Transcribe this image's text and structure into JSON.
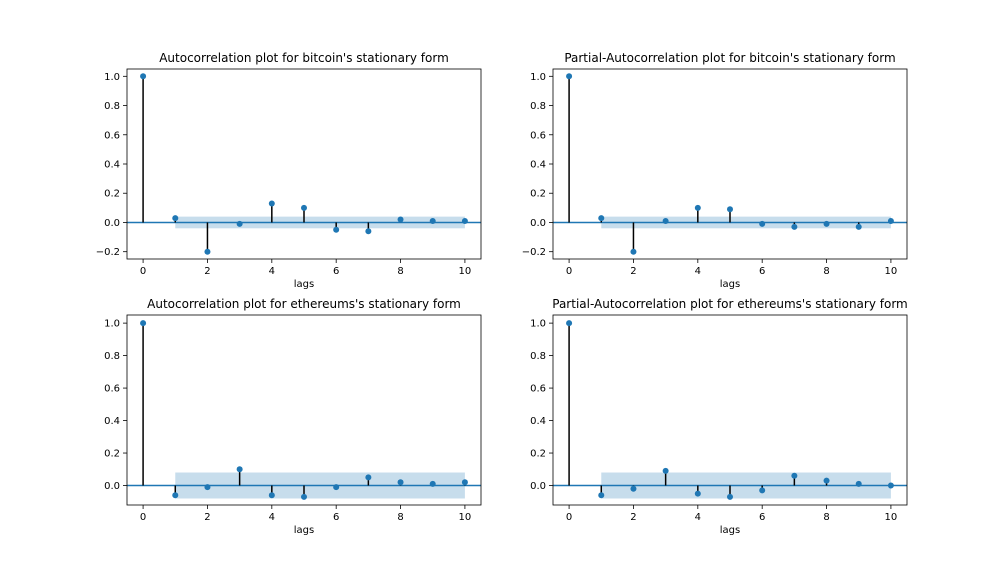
{
  "chart_data": [
    {
      "type": "stem",
      "title": "Autocorrelation plot for bitcoin's stationary form",
      "xlabel": "lags",
      "ylabel": "",
      "x": [
        0,
        1,
        2,
        3,
        4,
        5,
        6,
        7,
        8,
        9,
        10
      ],
      "values": [
        1.0,
        0.03,
        -0.2,
        -0.01,
        0.13,
        0.1,
        -0.05,
        -0.06,
        0.02,
        0.01,
        0.01
      ],
      "confidence_band": {
        "x_start": 1,
        "x_end": 10,
        "lower": -0.04,
        "upper": 0.04
      },
      "xlim": [
        -0.5,
        10.5
      ],
      "ylim": [
        -0.25,
        1.05
      ],
      "xticks": [
        0,
        2,
        4,
        6,
        8,
        10
      ],
      "yticks": [
        -0.2,
        0.0,
        0.2,
        0.4,
        0.6,
        0.8,
        1.0
      ],
      "marker_color": "#1f77b4",
      "band_color": "#1f77b4",
      "grid": false
    },
    {
      "type": "stem",
      "title": "Partial-Autocorrelation plot for bitcoin's stationary form",
      "xlabel": "lags",
      "ylabel": "",
      "x": [
        0,
        1,
        2,
        3,
        4,
        5,
        6,
        7,
        8,
        9,
        10
      ],
      "values": [
        1.0,
        0.03,
        -0.2,
        0.01,
        0.1,
        0.09,
        -0.01,
        -0.03,
        -0.01,
        -0.03,
        0.01
      ],
      "confidence_band": {
        "x_start": 1,
        "x_end": 10,
        "lower": -0.04,
        "upper": 0.04
      },
      "xlim": [
        -0.5,
        10.5
      ],
      "ylim": [
        -0.25,
        1.05
      ],
      "xticks": [
        0,
        2,
        4,
        6,
        8,
        10
      ],
      "yticks": [
        -0.2,
        0.0,
        0.2,
        0.4,
        0.6,
        0.8,
        1.0
      ],
      "marker_color": "#1f77b4",
      "band_color": "#1f77b4",
      "grid": false
    },
    {
      "type": "stem",
      "title": "Autocorrelation plot for ethereums's stationary form",
      "xlabel": "lags",
      "ylabel": "",
      "x": [
        0,
        1,
        2,
        3,
        4,
        5,
        6,
        7,
        8,
        9,
        10
      ],
      "values": [
        1.0,
        -0.06,
        -0.01,
        0.1,
        -0.06,
        -0.07,
        -0.01,
        0.05,
        0.02,
        0.01,
        0.02
      ],
      "confidence_band": {
        "x_start": 1,
        "x_end": 10,
        "lower": -0.08,
        "upper": 0.08
      },
      "xlim": [
        -0.5,
        10.5
      ],
      "ylim": [
        -0.12,
        1.05
      ],
      "xticks": [
        0,
        2,
        4,
        6,
        8,
        10
      ],
      "yticks": [
        0.0,
        0.2,
        0.4,
        0.6,
        0.8,
        1.0
      ],
      "marker_color": "#1f77b4",
      "band_color": "#1f77b4",
      "grid": false
    },
    {
      "type": "stem",
      "title": "Partial-Autocorrelation plot for ethereums's stationary form",
      "xlabel": "lags",
      "ylabel": "",
      "x": [
        0,
        1,
        2,
        3,
        4,
        5,
        6,
        7,
        8,
        9,
        10
      ],
      "values": [
        1.0,
        -0.06,
        -0.02,
        0.09,
        -0.05,
        -0.07,
        -0.03,
        0.06,
        0.03,
        0.01,
        0.0
      ],
      "confidence_band": {
        "x_start": 1,
        "x_end": 10,
        "lower": -0.08,
        "upper": 0.08
      },
      "xlim": [
        -0.5,
        10.5
      ],
      "ylim": [
        -0.12,
        1.05
      ],
      "xticks": [
        0,
        2,
        4,
        6,
        8,
        10
      ],
      "yticks": [
        0.0,
        0.2,
        0.4,
        0.6,
        0.8,
        1.0
      ],
      "marker_color": "#1f77b4",
      "band_color": "#1f77b4",
      "grid": false
    }
  ]
}
